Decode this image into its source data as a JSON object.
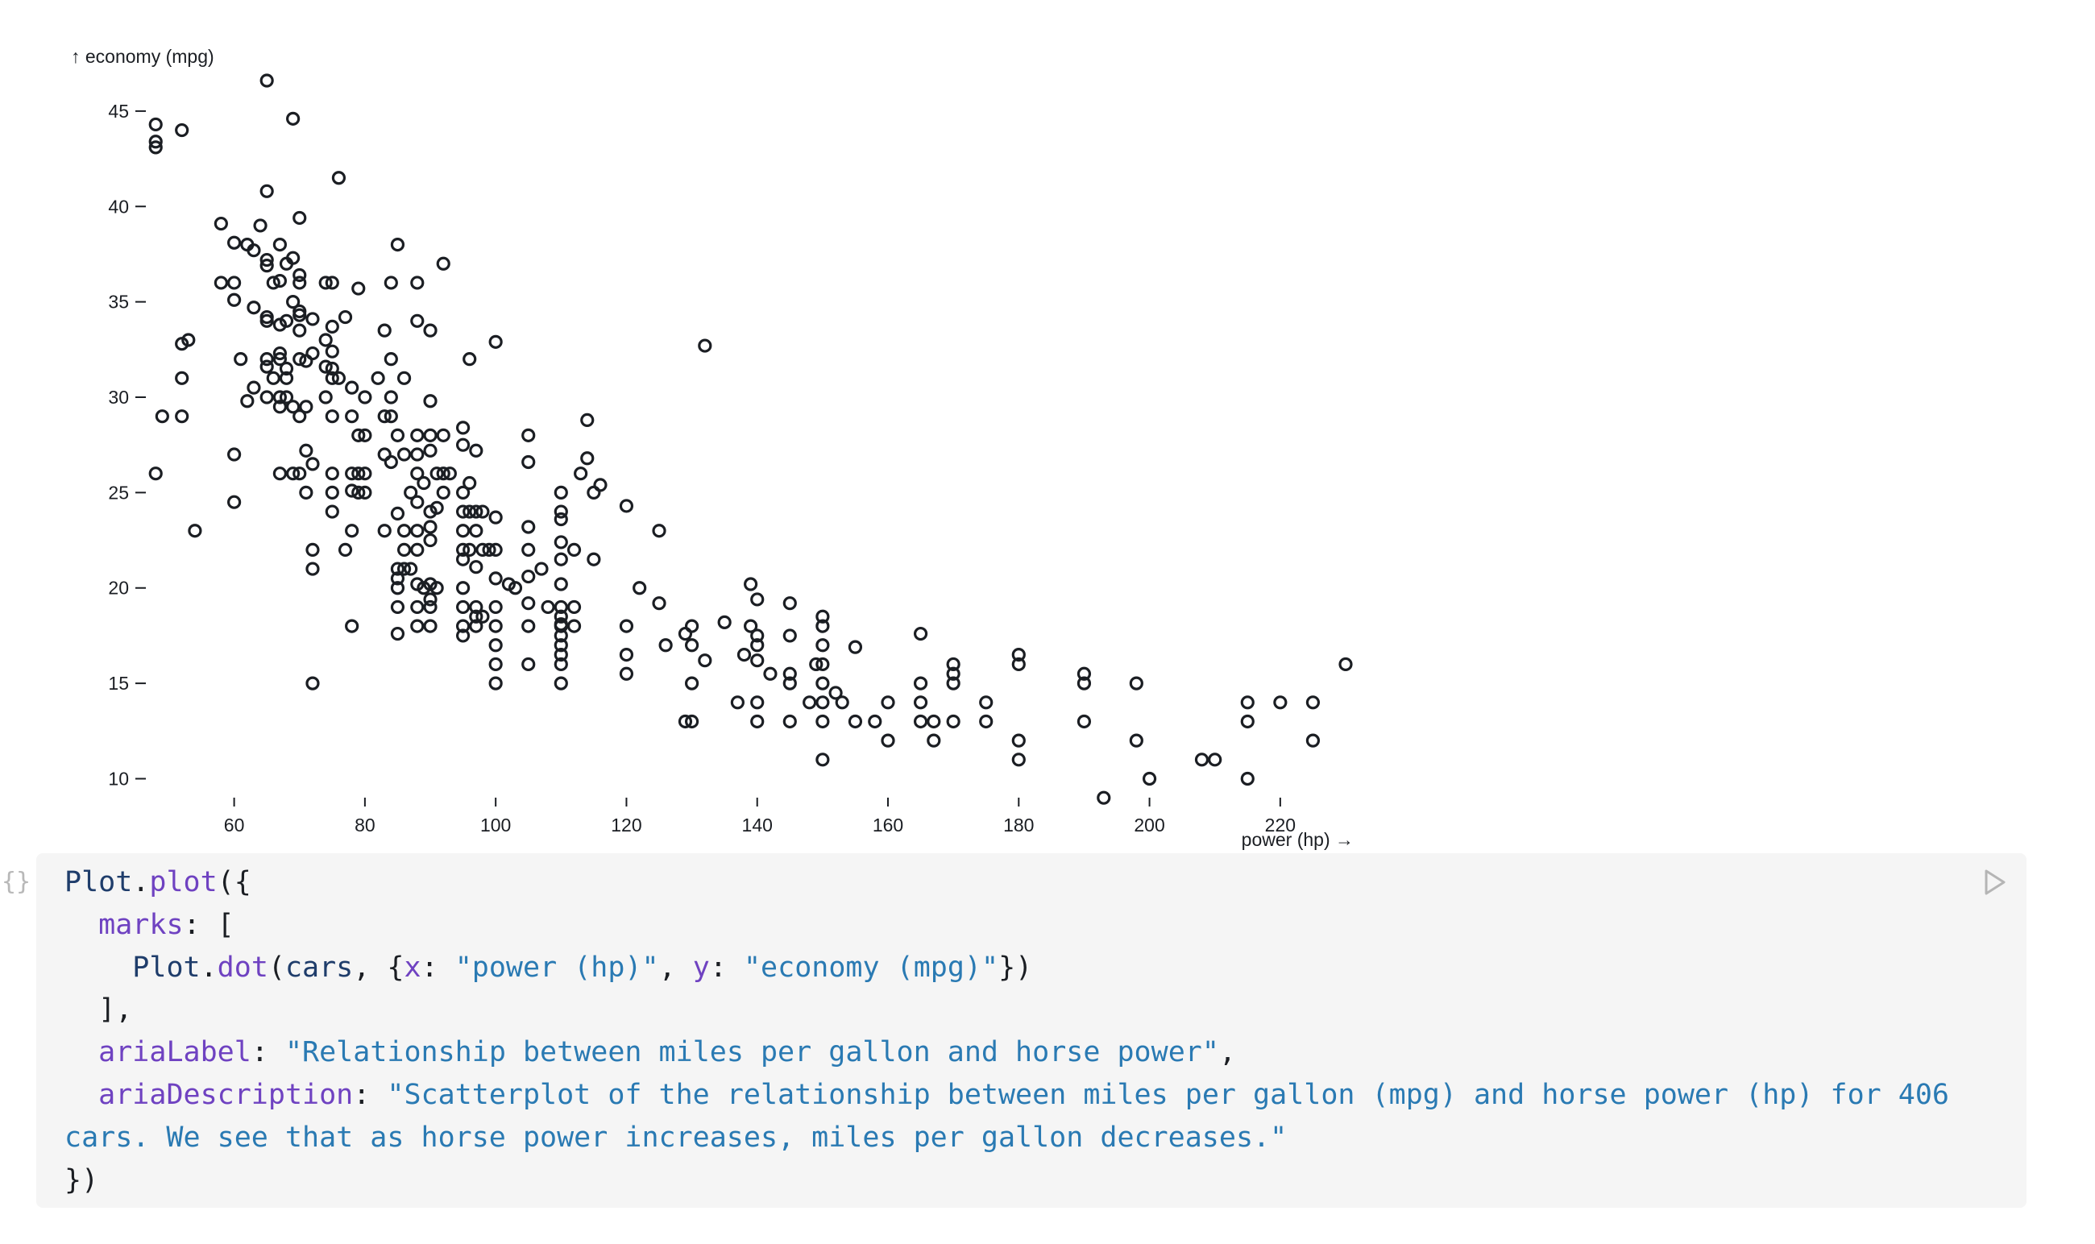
{
  "chart_data": {
    "type": "scatter",
    "xlabel": "power (hp) →",
    "ylabel": "↑ economy (mpg)",
    "xlim": [
      46,
      230
    ],
    "ylim": [
      8.5,
      46.6
    ],
    "xticks": [
      60,
      80,
      100,
      120,
      140,
      160,
      180,
      200,
      220
    ],
    "yticks": [
      10,
      15,
      20,
      25,
      30,
      35,
      40,
      45
    ],
    "grid": false,
    "points": [
      [
        65,
        46.6
      ],
      [
        69,
        44.6
      ],
      [
        48,
        44.3
      ],
      [
        52,
        44
      ],
      [
        48,
        43.4
      ],
      [
        48,
        43.1
      ],
      [
        76,
        41.5
      ],
      [
        65,
        40.8
      ],
      [
        70,
        39.4
      ],
      [
        58,
        39.1
      ],
      [
        64,
        39
      ],
      [
        60,
        38.1
      ],
      [
        67,
        38
      ],
      [
        62,
        38
      ],
      [
        85,
        38
      ],
      [
        63,
        37.7
      ],
      [
        69,
        37.3
      ],
      [
        68,
        37
      ],
      [
        92,
        37
      ],
      [
        65,
        37.2
      ],
      [
        65,
        36.9
      ],
      [
        70,
        36.4
      ],
      [
        67,
        36.1
      ],
      [
        58,
        36
      ],
      [
        60,
        36
      ],
      [
        66,
        36
      ],
      [
        70,
        36
      ],
      [
        74,
        36
      ],
      [
        75,
        36
      ],
      [
        84,
        36
      ],
      [
        88,
        36
      ],
      [
        79,
        35.7
      ],
      [
        69,
        35
      ],
      [
        60,
        35.1
      ],
      [
        63,
        34.7
      ],
      [
        70,
        34.5
      ],
      [
        70,
        34.3
      ],
      [
        65,
        34.2
      ],
      [
        68,
        34
      ],
      [
        77,
        34.2
      ],
      [
        72,
        34.1
      ],
      [
        88,
        34
      ],
      [
        65,
        34
      ],
      [
        67,
        33.8
      ],
      [
        75,
        33.7
      ],
      [
        70,
        33.5
      ],
      [
        83,
        33.5
      ],
      [
        90,
        33.5
      ],
      [
        53,
        33
      ],
      [
        52,
        32.8
      ],
      [
        74,
        33
      ],
      [
        75,
        32.4
      ],
      [
        100,
        32.9
      ],
      [
        132,
        32.7
      ],
      [
        72,
        32.3
      ],
      [
        67,
        32.3
      ],
      [
        65,
        32
      ],
      [
        67,
        32
      ],
      [
        61,
        32
      ],
      [
        70,
        32
      ],
      [
        84,
        32
      ],
      [
        96,
        32
      ],
      [
        71,
        31.9
      ],
      [
        65,
        31.6
      ],
      [
        75,
        31.5
      ],
      [
        68,
        31.5
      ],
      [
        74,
        31.6
      ],
      [
        52,
        31
      ],
      [
        66,
        31
      ],
      [
        68,
        31
      ],
      [
        75,
        31
      ],
      [
        76,
        31
      ],
      [
        82,
        31
      ],
      [
        86,
        31
      ],
      [
        78,
        30.5
      ],
      [
        63,
        30.5
      ],
      [
        65,
        30
      ],
      [
        62,
        29.8
      ],
      [
        67,
        30
      ],
      [
        68,
        30
      ],
      [
        71,
        29.5
      ],
      [
        80,
        30
      ],
      [
        74,
        30
      ],
      [
        84,
        30
      ],
      [
        90,
        29.8
      ],
      [
        49,
        29
      ],
      [
        52,
        29
      ],
      [
        67,
        29.5
      ],
      [
        69,
        29.5
      ],
      [
        70,
        29
      ],
      [
        75,
        29
      ],
      [
        78,
        29
      ],
      [
        83,
        29
      ],
      [
        84,
        29
      ],
      [
        88,
        28
      ],
      [
        95,
        28.4
      ],
      [
        114,
        28.8
      ],
      [
        90,
        28
      ],
      [
        92,
        28
      ],
      [
        105,
        28
      ],
      [
        79,
        28
      ],
      [
        80,
        28
      ],
      [
        85,
        28
      ],
      [
        90,
        27.2
      ],
      [
        60,
        27
      ],
      [
        71,
        27.2
      ],
      [
        83,
        27
      ],
      [
        86,
        27
      ],
      [
        88,
        27
      ],
      [
        95,
        27.5
      ],
      [
        97,
        27.2
      ],
      [
        105,
        26.6
      ],
      [
        114,
        26.8
      ],
      [
        72,
        26.5
      ],
      [
        84,
        26.6
      ],
      [
        48,
        26
      ],
      [
        67,
        26
      ],
      [
        69,
        26
      ],
      [
        70,
        26
      ],
      [
        75,
        26
      ],
      [
        78,
        26
      ],
      [
        79,
        26
      ],
      [
        80,
        26
      ],
      [
        88,
        26
      ],
      [
        89,
        25.5
      ],
      [
        91,
        26
      ],
      [
        92,
        26
      ],
      [
        93,
        26
      ],
      [
        96,
        25.5
      ],
      [
        113,
        26
      ],
      [
        116,
        25.4
      ],
      [
        78,
        25.1
      ],
      [
        79,
        25
      ],
      [
        80,
        25
      ],
      [
        87,
        25
      ],
      [
        88,
        24.5
      ],
      [
        92,
        25
      ],
      [
        95,
        25
      ],
      [
        110,
        25
      ],
      [
        115,
        25
      ],
      [
        71,
        25
      ],
      [
        75,
        25
      ],
      [
        60,
        24.5
      ],
      [
        75,
        24
      ],
      [
        85,
        23.9
      ],
      [
        90,
        24
      ],
      [
        91,
        24.2
      ],
      [
        95,
        24
      ],
      [
        96,
        24
      ],
      [
        97,
        24
      ],
      [
        98,
        24
      ],
      [
        100,
        23.7
      ],
      [
        110,
        24
      ],
      [
        110,
        23.6
      ],
      [
        120,
        24.3
      ],
      [
        54,
        23
      ],
      [
        78,
        23
      ],
      [
        83,
        23
      ],
      [
        86,
        23
      ],
      [
        88,
        23
      ],
      [
        90,
        23.2
      ],
      [
        95,
        23
      ],
      [
        97,
        23
      ],
      [
        105,
        23.2
      ],
      [
        125,
        23
      ],
      [
        88,
        22
      ],
      [
        95,
        22
      ],
      [
        96,
        22
      ],
      [
        98,
        22
      ],
      [
        99,
        22
      ],
      [
        100,
        22
      ],
      [
        105,
        22
      ],
      [
        110,
        22.4
      ],
      [
        112,
        22
      ],
      [
        72,
        22
      ],
      [
        77,
        22
      ],
      [
        86,
        22
      ],
      [
        90,
        22.5
      ],
      [
        85,
        21
      ],
      [
        86,
        21
      ],
      [
        87,
        21
      ],
      [
        95,
        21.5
      ],
      [
        97,
        21.1
      ],
      [
        107,
        21
      ],
      [
        110,
        21.5
      ],
      [
        115,
        21.5
      ],
      [
        72,
        21
      ],
      [
        85,
        20.5
      ],
      [
        88,
        20.2
      ],
      [
        89,
        20
      ],
      [
        90,
        20.2
      ],
      [
        91,
        20
      ],
      [
        95,
        20
      ],
      [
        100,
        20.5
      ],
      [
        102,
        20.2
      ],
      [
        103,
        20
      ],
      [
        105,
        20.6
      ],
      [
        110,
        20.2
      ],
      [
        122,
        20
      ],
      [
        139,
        20.2
      ],
      [
        85,
        20
      ],
      [
        90,
        19.4
      ],
      [
        95,
        19
      ],
      [
        97,
        19
      ],
      [
        100,
        19
      ],
      [
        105,
        19.2
      ],
      [
        108,
        19
      ],
      [
        110,
        19
      ],
      [
        112,
        19
      ],
      [
        125,
        19.2
      ],
      [
        140,
        19.4
      ],
      [
        145,
        19.2
      ],
      [
        85,
        19
      ],
      [
        88,
        19
      ],
      [
        90,
        19
      ],
      [
        97,
        18.5
      ],
      [
        98,
        18.5
      ],
      [
        110,
        18.5
      ],
      [
        110,
        18.1
      ],
      [
        130,
        18
      ],
      [
        150,
        18.5
      ],
      [
        78,
        18
      ],
      [
        88,
        18
      ],
      [
        90,
        18
      ],
      [
        95,
        18
      ],
      [
        97,
        18
      ],
      [
        100,
        18
      ],
      [
        105,
        18
      ],
      [
        110,
        18
      ],
      [
        112,
        18
      ],
      [
        120,
        18
      ],
      [
        129,
        17.6
      ],
      [
        135,
        18.2
      ],
      [
        139,
        18
      ],
      [
        140,
        17.5
      ],
      [
        145,
        17.5
      ],
      [
        150,
        18
      ],
      [
        165,
        17.6
      ],
      [
        85,
        17.6
      ],
      [
        95,
        17.5
      ],
      [
        100,
        17
      ],
      [
        110,
        17
      ],
      [
        110,
        17.5
      ],
      [
        126,
        17
      ],
      [
        130,
        17
      ],
      [
        140,
        17
      ],
      [
        150,
        17
      ],
      [
        155,
        16.9
      ],
      [
        180,
        16.5
      ],
      [
        100,
        16
      ],
      [
        105,
        16
      ],
      [
        110,
        16
      ],
      [
        110,
        16.5
      ],
      [
        120,
        16.5
      ],
      [
        132,
        16.2
      ],
      [
        138,
        16.5
      ],
      [
        140,
        16.2
      ],
      [
        149,
        16
      ],
      [
        150,
        16
      ],
      [
        170,
        16
      ],
      [
        180,
        16
      ],
      [
        230,
        16
      ],
      [
        120,
        15.5
      ],
      [
        142,
        15.5
      ],
      [
        145,
        15.5
      ],
      [
        150,
        15
      ],
      [
        170,
        15.5
      ],
      [
        190,
        15.5
      ],
      [
        72,
        15
      ],
      [
        100,
        15
      ],
      [
        110,
        15
      ],
      [
        130,
        15
      ],
      [
        145,
        15
      ],
      [
        152,
        14.5
      ],
      [
        165,
        15
      ],
      [
        170,
        15
      ],
      [
        190,
        15
      ],
      [
        198,
        15
      ],
      [
        137,
        14
      ],
      [
        140,
        14
      ],
      [
        148,
        14
      ],
      [
        150,
        14
      ],
      [
        153,
        14
      ],
      [
        160,
        14
      ],
      [
        165,
        14
      ],
      [
        175,
        14
      ],
      [
        215,
        14
      ],
      [
        220,
        14
      ],
      [
        225,
        14
      ],
      [
        129,
        13
      ],
      [
        130,
        13
      ],
      [
        140,
        13
      ],
      [
        145,
        13
      ],
      [
        150,
        13
      ],
      [
        155,
        13
      ],
      [
        158,
        13
      ],
      [
        165,
        13
      ],
      [
        167,
        13
      ],
      [
        170,
        13
      ],
      [
        175,
        13
      ],
      [
        190,
        13
      ],
      [
        215,
        13
      ],
      [
        160,
        12
      ],
      [
        167,
        12
      ],
      [
        180,
        12
      ],
      [
        198,
        12
      ],
      [
        225,
        12
      ],
      [
        150,
        11
      ],
      [
        180,
        11
      ],
      [
        208,
        11
      ],
      [
        210,
        11
      ],
      [
        200,
        10
      ],
      [
        215,
        10
      ],
      [
        193,
        9
      ]
    ]
  },
  "code": {
    "lines": [
      [
        {
          "t": "Plot",
          "c": "t-ident"
        },
        {
          "t": ".",
          "c": "t-punct"
        },
        {
          "t": "plot",
          "c": "t-fn"
        },
        {
          "t": "({",
          "c": "t-punct"
        }
      ],
      [
        {
          "t": "  ",
          "c": "t-punct"
        },
        {
          "t": "marks",
          "c": "t-prop"
        },
        {
          "t": ": [",
          "c": "t-punct"
        }
      ],
      [
        {
          "t": "    ",
          "c": "t-punct"
        },
        {
          "t": "Plot",
          "c": "t-ident"
        },
        {
          "t": ".",
          "c": "t-punct"
        },
        {
          "t": "dot",
          "c": "t-fn"
        },
        {
          "t": "(",
          "c": "t-punct"
        },
        {
          "t": "cars",
          "c": "t-ident"
        },
        {
          "t": ", {",
          "c": "t-punct"
        },
        {
          "t": "x",
          "c": "t-prop"
        },
        {
          "t": ": ",
          "c": "t-punct"
        },
        {
          "t": "\"power (hp)\"",
          "c": "t-str"
        },
        {
          "t": ", ",
          "c": "t-punct"
        },
        {
          "t": "y",
          "c": "t-prop"
        },
        {
          "t": ": ",
          "c": "t-punct"
        },
        {
          "t": "\"economy (mpg)\"",
          "c": "t-str"
        },
        {
          "t": "})",
          "c": "t-punct"
        }
      ],
      [
        {
          "t": "  ],",
          "c": "t-punct"
        }
      ],
      [
        {
          "t": "  ",
          "c": "t-punct"
        },
        {
          "t": "ariaLabel",
          "c": "t-prop"
        },
        {
          "t": ": ",
          "c": "t-punct"
        },
        {
          "t": "\"Relationship between miles per gallon and horse power\"",
          "c": "t-str"
        },
        {
          "t": ",",
          "c": "t-punct"
        }
      ],
      [
        {
          "t": "  ",
          "c": "t-punct"
        },
        {
          "t": "ariaDescription",
          "c": "t-prop"
        },
        {
          "t": ": ",
          "c": "t-punct"
        },
        {
          "t": "\"Scatterplot of the relationship between miles per gallon (mpg) and horse power (hp) for 406",
          "c": "t-str"
        }
      ],
      [
        {
          "t": "cars. We see that as horse power increases, miles per gallon decreases.\"",
          "c": "t-str"
        }
      ],
      [
        {
          "t": "})",
          "c": "t-punct"
        }
      ]
    ]
  },
  "icons": {
    "cell_handle": "braces-icon",
    "run": "play-icon"
  },
  "cell_handle_glyph": "{}",
  "colors": {
    "ink": "#1b1e23",
    "code_bg": "#f5f5f5",
    "string": "#2a7ab3",
    "property": "#6f42c1",
    "identifier": "#1f3d6b"
  }
}
